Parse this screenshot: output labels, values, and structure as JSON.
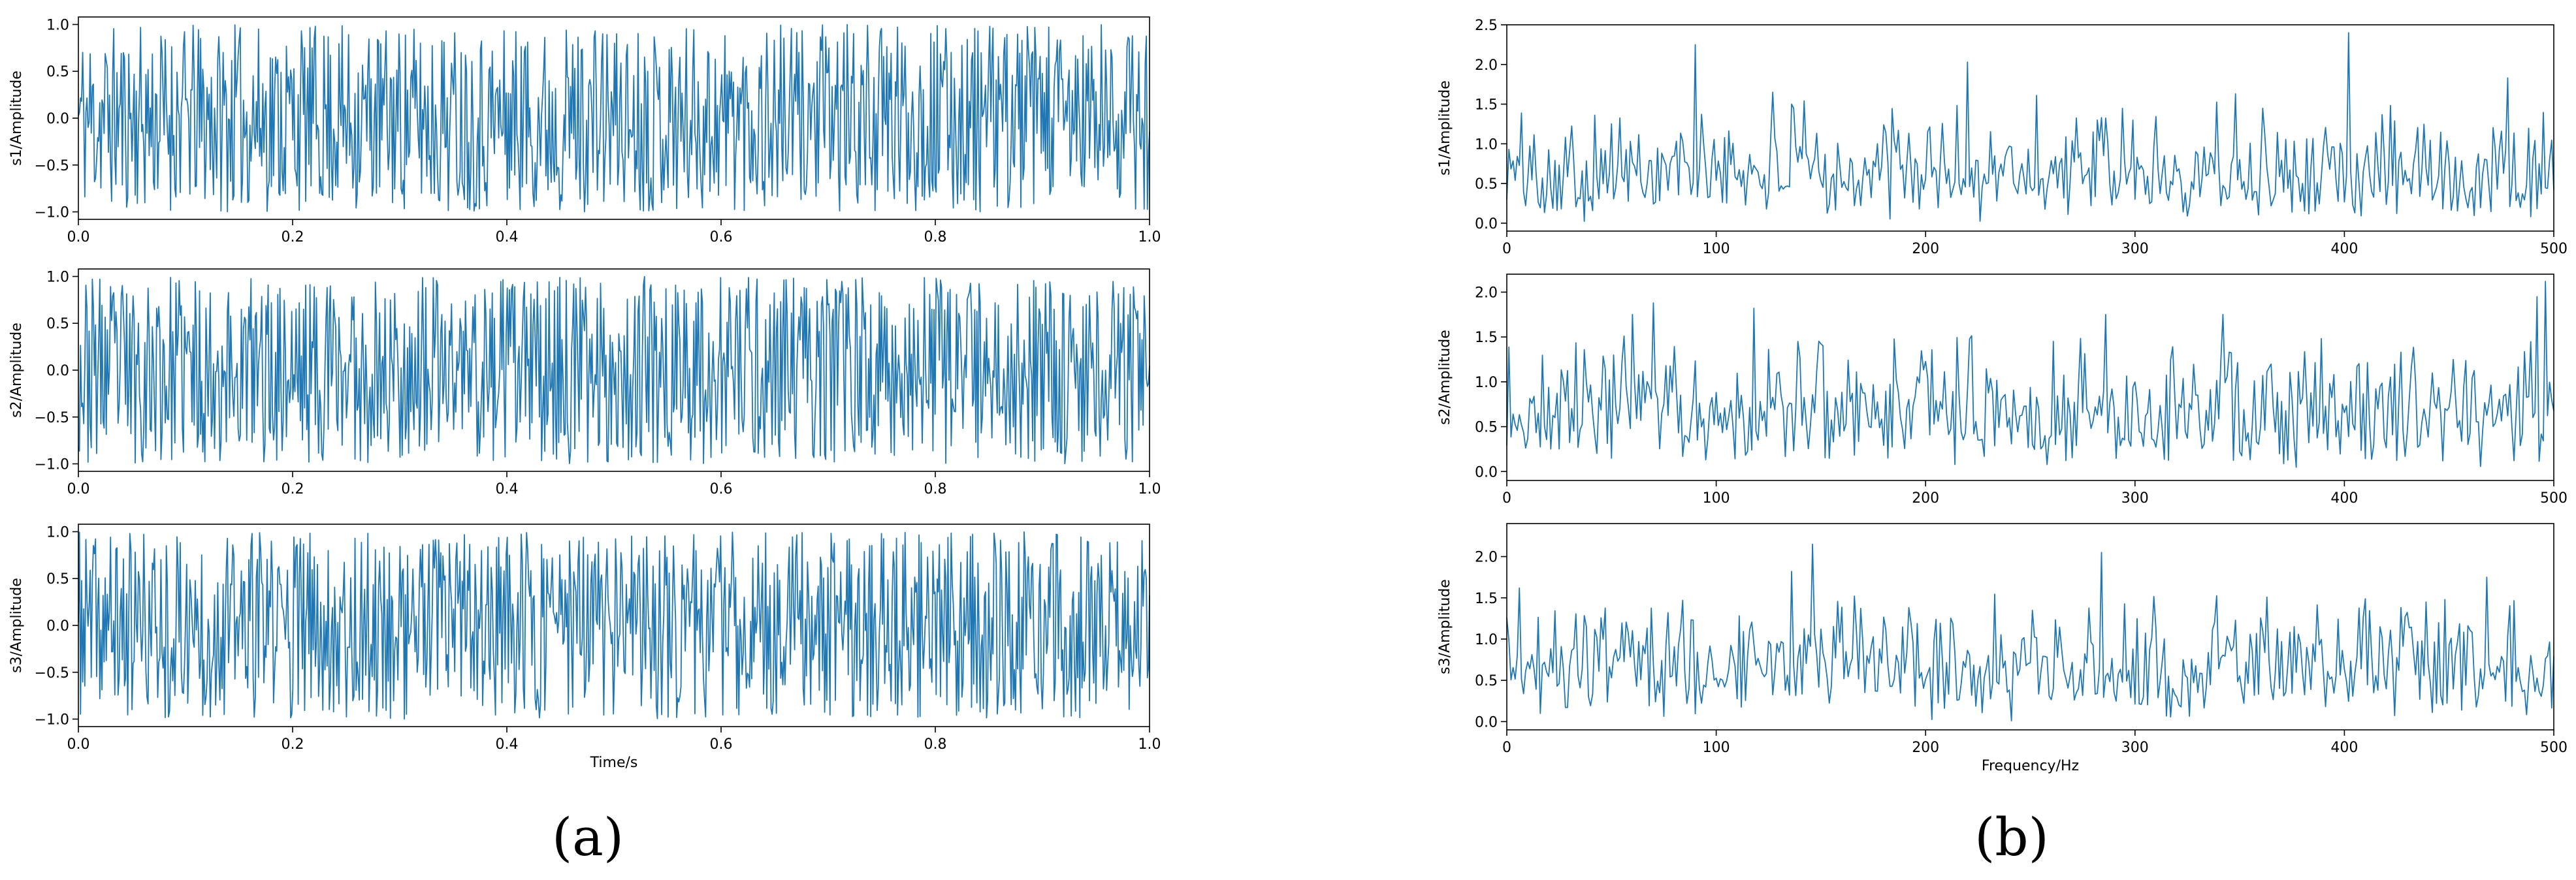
{
  "panel_labels": {
    "a": "(a)",
    "b": "(b)"
  },
  "colors": {
    "series": "#1f77b4",
    "axes": "#000000",
    "background": "#ffffff"
  },
  "chart_data": [
    {
      "id": "a1",
      "type": "line",
      "panel": "a",
      "title": "",
      "xlabel": "",
      "ylabel": "s1/Amplitude",
      "xlim": [
        0.0,
        1.0
      ],
      "ylim": [
        -1.08,
        1.08
      ],
      "xticks": [
        0.0,
        0.2,
        0.4,
        0.6,
        0.8,
        1.0
      ],
      "xtick_labels": [
        "0.0",
        "0.2",
        "0.4",
        "0.6",
        "0.8",
        "1.0"
      ],
      "yticks": [
        -1.0,
        -0.5,
        0.0,
        0.5,
        1.0
      ],
      "ytick_labels": [
        "−1.0",
        "−0.5",
        "0.0",
        "0.5",
        "1.0"
      ],
      "series": [
        {
          "signal": "uniform noise in [-1, 1], 1000 samples over 0–1 s",
          "points": 1000,
          "seed": 11
        }
      ],
      "grid": false
    },
    {
      "id": "a2",
      "type": "line",
      "panel": "a",
      "title": "",
      "xlabel": "",
      "ylabel": "s2/Amplitude",
      "xlim": [
        0.0,
        1.0
      ],
      "ylim": [
        -1.08,
        1.08
      ],
      "xticks": [
        0.0,
        0.2,
        0.4,
        0.6,
        0.8,
        1.0
      ],
      "xtick_labels": [
        "0.0",
        "0.2",
        "0.4",
        "0.6",
        "0.8",
        "1.0"
      ],
      "yticks": [
        -1.0,
        -0.5,
        0.0,
        0.5,
        1.0
      ],
      "ytick_labels": [
        "−1.0",
        "−0.5",
        "0.0",
        "0.5",
        "1.0"
      ],
      "series": [
        {
          "signal": "uniform noise in [-1, 1], 1000 samples over 0–1 s",
          "points": 1000,
          "seed": 23
        }
      ],
      "grid": false
    },
    {
      "id": "a3",
      "type": "line",
      "panel": "a",
      "title": "",
      "xlabel": "Time/s",
      "ylabel": "s3/Amplitude",
      "xlim": [
        0.0,
        1.0
      ],
      "ylim": [
        -1.08,
        1.08
      ],
      "xticks": [
        0.0,
        0.2,
        0.4,
        0.6,
        0.8,
        1.0
      ],
      "xtick_labels": [
        "0.0",
        "0.2",
        "0.4",
        "0.6",
        "0.8",
        "1.0"
      ],
      "yticks": [
        -1.0,
        -0.5,
        0.0,
        0.5,
        1.0
      ],
      "ytick_labels": [
        "−1.0",
        "−0.5",
        "0.0",
        "0.5",
        "1.0"
      ],
      "series": [
        {
          "signal": "uniform noise in [-1, 1], 1000 samples over 0–1 s",
          "points": 1000,
          "seed": 37
        }
      ],
      "grid": false
    },
    {
      "id": "b1",
      "type": "line",
      "panel": "b",
      "title": "",
      "xlabel": "",
      "ylabel": "s1/Amplitude",
      "xlim": [
        0,
        500
      ],
      "ylim": [
        -0.1,
        2.5
      ],
      "xticks": [
        0,
        100,
        200,
        300,
        400,
        500
      ],
      "xtick_labels": [
        "0",
        "100",
        "200",
        "300",
        "400",
        "500"
      ],
      "yticks": [
        0.0,
        0.5,
        1.0,
        1.5,
        2.0,
        2.5
      ],
      "ytick_labels": [
        "0.0",
        "0.5",
        "1.0",
        "1.5",
        "2.0",
        "2.5"
      ],
      "series": [
        {
          "signal": "amplitude spectrum 0–500 Hz, typical 0.2–1.5",
          "points": 500,
          "seed": 101,
          "peaks": [
            [
              90,
              2.25
            ],
            [
              220,
              2.03
            ],
            [
              348,
              1.63
            ],
            [
              402,
              2.4
            ],
            [
              478,
              1.83
            ],
            [
              127,
              1.65
            ],
            [
              253,
              1.61
            ]
          ]
        }
      ],
      "grid": false
    },
    {
      "id": "b2",
      "type": "line",
      "panel": "b",
      "title": "",
      "xlabel": "",
      "ylabel": "s2/Amplitude",
      "xlim": [
        0,
        500
      ],
      "ylim": [
        -0.1,
        2.2
      ],
      "xticks": [
        0,
        100,
        200,
        300,
        400,
        500
      ],
      "xtick_labels": [
        "0",
        "100",
        "200",
        "300",
        "400",
        "500"
      ],
      "yticks": [
        0.0,
        0.5,
        1.0,
        1.5,
        2.0
      ],
      "ytick_labels": [
        "0.0",
        "0.5",
        "1.0",
        "1.5",
        "2.0"
      ],
      "series": [
        {
          "signal": "amplitude spectrum 0–500 Hz, typical 0.2–1.5",
          "points": 500,
          "seed": 202,
          "peaks": [
            [
              70,
              1.88
            ],
            [
              118,
              1.82
            ],
            [
              286,
              1.75
            ],
            [
              342,
              1.75
            ],
            [
              496,
              2.12
            ],
            [
              492,
              1.95
            ],
            [
              60,
              1.75
            ]
          ]
        }
      ],
      "grid": false
    },
    {
      "id": "b3",
      "type": "line",
      "panel": "b",
      "title": "",
      "xlabel": "Frequency/Hz",
      "ylabel": "s3/Amplitude",
      "xlim": [
        0,
        500
      ],
      "ylim": [
        -0.1,
        2.4
      ],
      "xticks": [
        0,
        100,
        200,
        300,
        400,
        500
      ],
      "xtick_labels": [
        "0",
        "100",
        "200",
        "300",
        "400",
        "500"
      ],
      "yticks": [
        0.0,
        0.5,
        1.0,
        1.5,
        2.0
      ],
      "ytick_labels": [
        "0.0",
        "0.5",
        "1.0",
        "1.5",
        "2.0"
      ],
      "series": [
        {
          "signal": "amplitude spectrum 0–500 Hz, typical 0.2–1.5",
          "points": 500,
          "seed": 303,
          "peaks": [
            [
              146,
              2.15
            ],
            [
              284,
              2.05
            ],
            [
              136,
              1.82
            ],
            [
              468,
              1.75
            ],
            [
              6,
              1.62
            ]
          ]
        }
      ],
      "grid": false
    }
  ]
}
